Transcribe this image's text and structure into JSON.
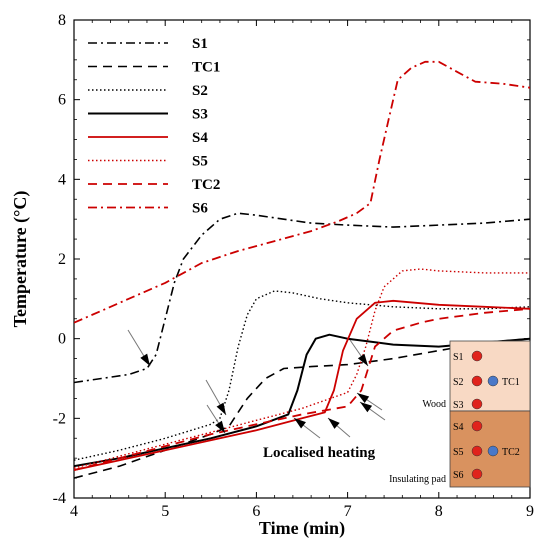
{
  "chart_data": {
    "type": "line",
    "xlabel": "Time (min)",
    "ylabel": "Temperature (°C)",
    "xlim": [
      4,
      9
    ],
    "ylim": [
      -4,
      8
    ],
    "xticks": [
      "4",
      "5",
      "6",
      "7",
      "8",
      "9"
    ],
    "yticks": [
      "-4",
      "-2",
      "0",
      "2",
      "4",
      "6",
      "8"
    ],
    "grid": false,
    "legend_position": "top-left",
    "series": [
      {
        "name": "S1",
        "color": "#000000",
        "dash": "dashdot",
        "width": 1.6,
        "x": [
          4.0,
          4.3,
          4.6,
          4.8,
          4.9,
          5.0,
          5.1,
          5.2,
          5.4,
          5.6,
          5.8,
          6.0,
          6.3,
          6.6,
          7.0,
          7.5,
          8.0,
          8.5,
          9.0
        ],
        "y": [
          -1.1,
          -1.0,
          -0.9,
          -0.75,
          -0.4,
          0.5,
          1.4,
          2.0,
          2.6,
          3.0,
          3.15,
          3.1,
          3.0,
          2.9,
          2.85,
          2.8,
          2.85,
          2.9,
          3.0
        ]
      },
      {
        "name": "TC1",
        "color": "#000000",
        "dash": "dash",
        "width": 1.6,
        "x": [
          4.0,
          4.5,
          5.0,
          5.5,
          5.7,
          5.9,
          6.1,
          6.3,
          6.6,
          7.0,
          7.5,
          8.0,
          8.5,
          9.0
        ],
        "y": [
          -3.5,
          -3.2,
          -2.8,
          -2.4,
          -2.2,
          -1.5,
          -1.0,
          -0.75,
          -0.7,
          -0.65,
          -0.5,
          -0.3,
          -0.1,
          0.0
        ]
      },
      {
        "name": "S2",
        "color": "#000000",
        "dash": "dot",
        "width": 1.4,
        "x": [
          4.0,
          4.5,
          5.0,
          5.5,
          5.6,
          5.7,
          5.8,
          5.9,
          6.0,
          6.2,
          6.4,
          6.7,
          7.0,
          7.5,
          8.0,
          8.5,
          9.0
        ],
        "y": [
          -3.05,
          -2.8,
          -2.5,
          -2.15,
          -2.0,
          -1.3,
          -0.2,
          0.6,
          1.0,
          1.2,
          1.15,
          1.0,
          0.9,
          0.8,
          0.75,
          0.75,
          0.8
        ]
      },
      {
        "name": "S3",
        "color": "#000000",
        "dash": "solid",
        "width": 2.0,
        "x": [
          4.0,
          4.5,
          5.0,
          5.5,
          6.0,
          6.35,
          6.45,
          6.55,
          6.65,
          6.8,
          7.0,
          7.5,
          8.0,
          8.5,
          9.0
        ],
        "y": [
          -3.2,
          -3.0,
          -2.75,
          -2.5,
          -2.2,
          -1.9,
          -1.3,
          -0.4,
          0.0,
          0.1,
          0.0,
          -0.15,
          -0.2,
          -0.1,
          0.0
        ]
      },
      {
        "name": "S4",
        "color": "#cc0000",
        "dash": "solid",
        "width": 1.8,
        "x": [
          4.0,
          4.5,
          5.0,
          5.5,
          6.0,
          6.5,
          6.75,
          6.85,
          6.95,
          7.1,
          7.3,
          7.5,
          8.0,
          8.5,
          9.0
        ],
        "y": [
          -3.3,
          -3.05,
          -2.8,
          -2.55,
          -2.3,
          -2.0,
          -1.85,
          -1.3,
          -0.3,
          0.5,
          0.9,
          0.95,
          0.85,
          0.8,
          0.75
        ]
      },
      {
        "name": "S5",
        "color": "#cc0000",
        "dash": "dot",
        "width": 1.4,
        "x": [
          4.0,
          4.5,
          5.0,
          5.5,
          6.0,
          6.5,
          7.0,
          7.1,
          7.2,
          7.3,
          7.4,
          7.6,
          7.8,
          8.0,
          8.5,
          9.0
        ],
        "y": [
          -3.25,
          -2.95,
          -2.65,
          -2.35,
          -2.05,
          -1.75,
          -1.35,
          -0.9,
          -0.2,
          0.7,
          1.3,
          1.7,
          1.75,
          1.7,
          1.65,
          1.65
        ]
      },
      {
        "name": "TC2",
        "color": "#cc0000",
        "dash": "dash",
        "width": 1.8,
        "x": [
          4.0,
          4.5,
          5.0,
          5.5,
          6.0,
          6.5,
          7.0,
          7.15,
          7.3,
          7.5,
          7.8,
          8.0,
          8.5,
          9.0
        ],
        "y": [
          -3.3,
          -3.0,
          -2.7,
          -2.4,
          -2.15,
          -1.9,
          -1.7,
          -1.3,
          -0.2,
          0.2,
          0.4,
          0.5,
          0.65,
          0.75
        ]
      },
      {
        "name": "S6",
        "color": "#cc0000",
        "dash": "dashdot",
        "width": 1.8,
        "x": [
          4.0,
          4.3,
          4.6,
          5.0,
          5.4,
          5.8,
          6.2,
          6.6,
          6.9,
          7.1,
          7.25,
          7.35,
          7.45,
          7.55,
          7.7,
          7.85,
          8.0,
          8.2,
          8.4,
          8.7,
          9.0
        ],
        "y": [
          0.4,
          0.7,
          1.0,
          1.4,
          1.9,
          2.2,
          2.45,
          2.7,
          2.95,
          3.15,
          3.4,
          4.5,
          5.5,
          6.5,
          6.8,
          6.95,
          6.95,
          6.7,
          6.45,
          6.4,
          6.3
        ]
      }
    ],
    "annotations": [
      {
        "text": "Localised heating"
      }
    ],
    "inset": {
      "wood_label": "Wood",
      "pad_label": "Insulating pad",
      "wood_color": "#f8d9c4",
      "pad_color": "#d9925f",
      "sensor_color": "#e0231c",
      "tc_color": "#4a78c8",
      "rows": [
        {
          "sensor": "S1",
          "tc": ""
        },
        {
          "sensor": "S2",
          "tc": "TC1"
        },
        {
          "sensor": "S3",
          "tc": ""
        },
        {
          "sensor": "S4",
          "tc": ""
        },
        {
          "sensor": "S5",
          "tc": "TC2"
        },
        {
          "sensor": "S6",
          "tc": ""
        }
      ]
    }
  }
}
